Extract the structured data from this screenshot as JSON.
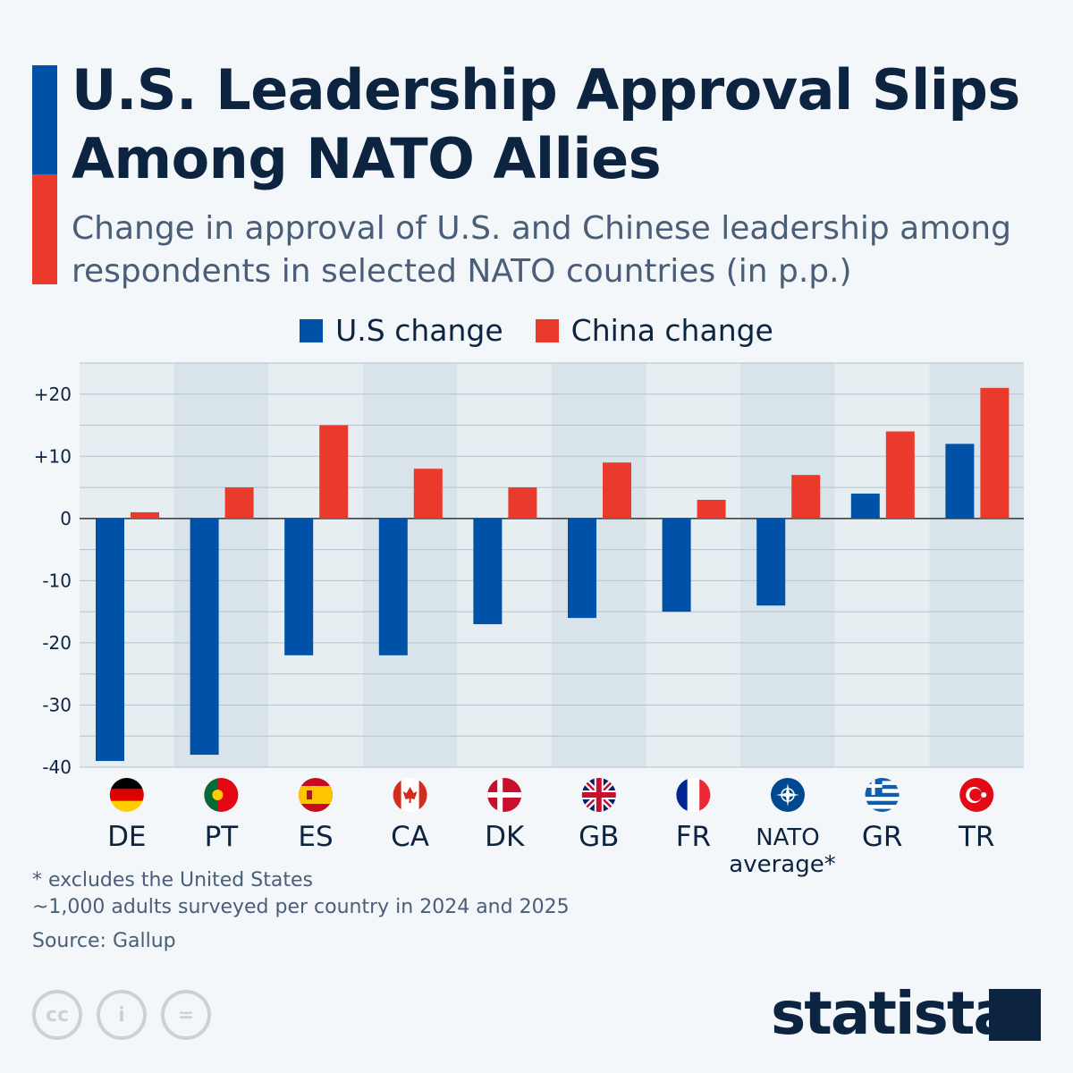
{
  "header": {
    "title": "U.S. Leadership Approval Slips Among NATO Allies",
    "subtitle": "Change in approval of U.S. and Chinese leadership among respondents in selected NATO countries (in p.p.)"
  },
  "colors": {
    "us": "#0051a8",
    "china": "#ea3a2b",
    "title": "#0d2441"
  },
  "chart_data": {
    "type": "bar",
    "categories": [
      "DE",
      "PT",
      "ES",
      "CA",
      "DK",
      "GB",
      "FR",
      "NATO average*",
      "GR",
      "TR"
    ],
    "flags": [
      "germany-flag",
      "portugal-flag",
      "spain-flag",
      "canada-flag",
      "denmark-flag",
      "uk-flag",
      "france-flag",
      "nato-emblem",
      "greece-flag",
      "turkey-flag"
    ],
    "series": [
      {
        "name": "U.S change",
        "values": [
          -39,
          -38,
          -22,
          -22,
          -17,
          -16,
          -15,
          -14,
          4,
          12
        ]
      },
      {
        "name": "China change",
        "values": [
          1,
          5,
          15,
          8,
          5,
          9,
          3,
          7,
          14,
          21
        ]
      }
    ],
    "ylim": [
      -40,
      25
    ],
    "yticks": [
      20,
      10,
      0,
      -10,
      -20,
      -30,
      -40
    ],
    "ytick_labels": [
      "+20",
      "+10",
      "0",
      "-10",
      "-20",
      "-30",
      "-40"
    ],
    "grid": true,
    "legend": "top-center"
  },
  "footer": {
    "note1": "* excludes the United States",
    "note2": "~1,000 adults surveyed per country in 2024 and 2025",
    "source": "Source: Gallup",
    "brand": "statista"
  }
}
